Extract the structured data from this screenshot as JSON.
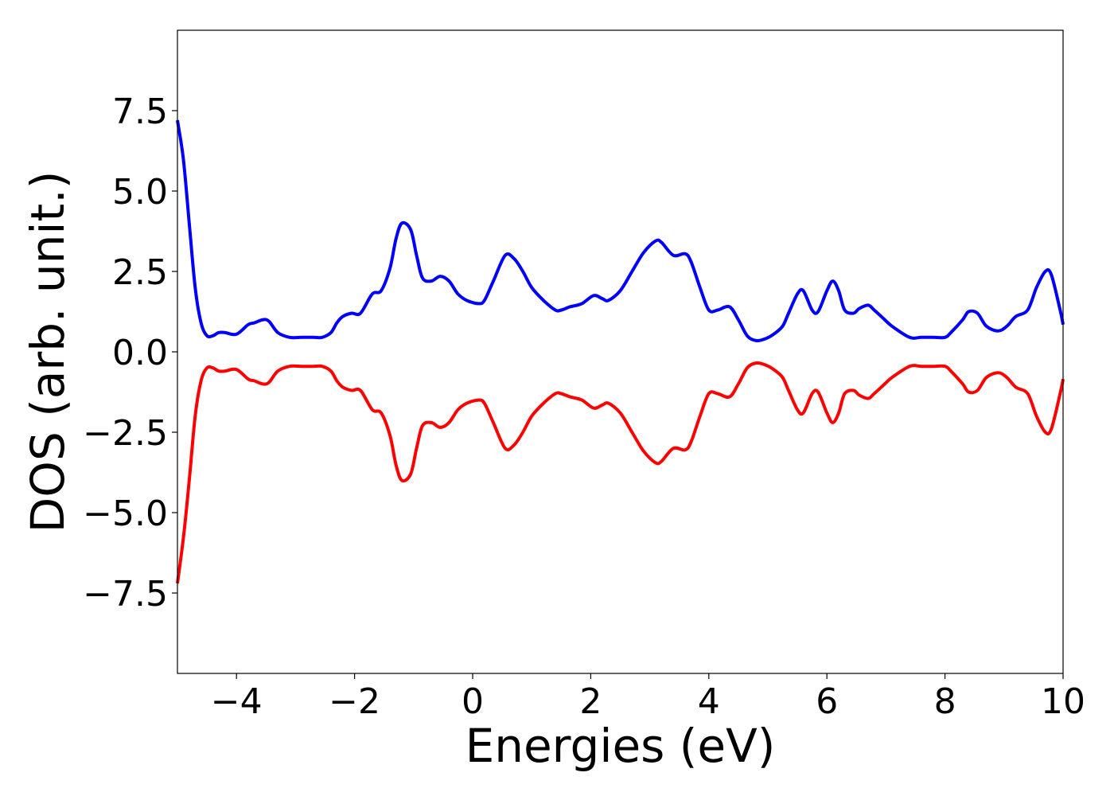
{
  "chart_data": {
    "type": "line",
    "xlabel": "Energies (eV)",
    "ylabel": "DOS (arb. unit.)",
    "xlim": [
      -5,
      10
    ],
    "ylim": [
      -10,
      10
    ],
    "grid": false,
    "x_ticks": [
      -4,
      -2,
      0,
      2,
      4,
      6,
      8,
      10
    ],
    "x_tick_labels": [
      "−4",
      "−2",
      "0",
      "2",
      "4",
      "6",
      "8",
      "10"
    ],
    "y_ticks": [
      -7.5,
      -5.0,
      -2.5,
      0.0,
      2.5,
      5.0,
      7.5
    ],
    "y_tick_labels": [
      "−7.5",
      "−5.0",
      "−2.5",
      "0.0",
      "2.5",
      "5.0",
      "7.5"
    ],
    "series": [
      {
        "color": "#0000ff",
        "x": [
          -5.0,
          -4.9,
          -4.8,
          -4.7,
          -4.6,
          -4.5,
          -4.4,
          -4.3,
          -4.2,
          -4.0,
          -3.8,
          -3.7,
          -3.55,
          -3.45,
          -3.3,
          -3.1,
          -2.9,
          -2.7,
          -2.55,
          -2.4,
          -2.3,
          -2.2,
          -2.05,
          -1.9,
          -1.7,
          -1.55,
          -1.4,
          -1.3,
          -1.2,
          -1.05,
          -0.95,
          -0.85,
          -0.7,
          -0.55,
          -0.4,
          -0.25,
          -0.1,
          0.1,
          0.2,
          0.35,
          0.55,
          0.7,
          0.85,
          1.0,
          1.2,
          1.4,
          1.5,
          1.65,
          1.85,
          2.05,
          2.2,
          2.3,
          2.5,
          2.7,
          2.9,
          3.1,
          3.2,
          3.4,
          3.6,
          3.7,
          3.85,
          4.0,
          4.15,
          4.35,
          4.5,
          4.65,
          4.8,
          4.95,
          5.1,
          5.25,
          5.35,
          5.5,
          5.6,
          5.75,
          5.85,
          6.0,
          6.1,
          6.2,
          6.3,
          6.45,
          6.55,
          6.7,
          6.8,
          6.95,
          7.1,
          7.4,
          7.6,
          7.8,
          8.0,
          8.1,
          8.3,
          8.4,
          8.55,
          8.7,
          8.9,
          9.05,
          9.2,
          9.4,
          9.55,
          9.7,
          9.8,
          9.95,
          10.0
        ],
        "y": [
          7.2,
          6.0,
          4.0,
          2.0,
          0.9,
          0.5,
          0.5,
          0.6,
          0.6,
          0.55,
          0.85,
          0.9,
          1.0,
          0.95,
          0.6,
          0.45,
          0.45,
          0.45,
          0.45,
          0.6,
          0.9,
          1.1,
          1.2,
          1.2,
          1.8,
          1.9,
          2.6,
          3.5,
          4.0,
          3.8,
          3.0,
          2.3,
          2.2,
          2.35,
          2.2,
          1.8,
          1.6,
          1.5,
          1.6,
          2.2,
          3.0,
          2.9,
          2.5,
          2.0,
          1.6,
          1.3,
          1.3,
          1.4,
          1.5,
          1.75,
          1.65,
          1.6,
          1.9,
          2.5,
          3.1,
          3.45,
          3.4,
          3.0,
          3.05,
          2.8,
          2.0,
          1.3,
          1.3,
          1.4,
          1.0,
          0.5,
          0.35,
          0.4,
          0.55,
          0.8,
          1.2,
          1.8,
          1.9,
          1.3,
          1.25,
          1.9,
          2.2,
          1.9,
          1.3,
          1.2,
          1.35,
          1.45,
          1.3,
          1.05,
          0.8,
          0.45,
          0.45,
          0.45,
          0.45,
          0.6,
          1.0,
          1.25,
          1.2,
          0.8,
          0.65,
          0.8,
          1.1,
          1.3,
          2.0,
          2.5,
          2.4,
          1.3,
          0.85
        ]
      },
      {
        "color": "#ff0000",
        "x": [
          -5.0,
          -4.9,
          -4.8,
          -4.7,
          -4.6,
          -4.5,
          -4.4,
          -4.3,
          -4.2,
          -4.0,
          -3.8,
          -3.7,
          -3.55,
          -3.45,
          -3.3,
          -3.1,
          -2.9,
          -2.7,
          -2.55,
          -2.4,
          -2.3,
          -2.2,
          -2.05,
          -1.9,
          -1.7,
          -1.55,
          -1.4,
          -1.3,
          -1.2,
          -1.05,
          -0.95,
          -0.85,
          -0.7,
          -0.55,
          -0.4,
          -0.25,
          -0.1,
          0.1,
          0.2,
          0.35,
          0.55,
          0.7,
          0.85,
          1.0,
          1.2,
          1.4,
          1.5,
          1.65,
          1.85,
          2.05,
          2.2,
          2.3,
          2.5,
          2.7,
          2.9,
          3.1,
          3.2,
          3.4,
          3.6,
          3.7,
          3.85,
          4.0,
          4.15,
          4.35,
          4.5,
          4.65,
          4.8,
          4.95,
          5.1,
          5.25,
          5.35,
          5.5,
          5.6,
          5.75,
          5.85,
          6.0,
          6.1,
          6.2,
          6.3,
          6.45,
          6.55,
          6.7,
          6.8,
          6.95,
          7.1,
          7.4,
          7.6,
          7.8,
          8.0,
          8.1,
          8.3,
          8.4,
          8.55,
          8.7,
          8.9,
          9.05,
          9.2,
          9.4,
          9.55,
          9.7,
          9.8,
          9.95,
          10.0
        ],
        "y": [
          -7.2,
          -5.8,
          -4.0,
          -2.0,
          -0.9,
          -0.5,
          -0.5,
          -0.6,
          -0.6,
          -0.55,
          -0.85,
          -0.9,
          -1.0,
          -0.95,
          -0.6,
          -0.45,
          -0.45,
          -0.45,
          -0.45,
          -0.6,
          -0.9,
          -1.1,
          -1.2,
          -1.2,
          -1.8,
          -1.9,
          -2.6,
          -3.5,
          -4.0,
          -3.8,
          -3.0,
          -2.3,
          -2.2,
          -2.35,
          -2.2,
          -1.8,
          -1.6,
          -1.5,
          -1.6,
          -2.2,
          -3.0,
          -2.9,
          -2.5,
          -2.0,
          -1.6,
          -1.3,
          -1.3,
          -1.4,
          -1.5,
          -1.75,
          -1.65,
          -1.6,
          -1.9,
          -2.5,
          -3.1,
          -3.45,
          -3.4,
          -3.0,
          -3.05,
          -2.8,
          -2.0,
          -1.3,
          -1.3,
          -1.4,
          -1.0,
          -0.5,
          -0.35,
          -0.4,
          -0.55,
          -0.8,
          -1.2,
          -1.8,
          -1.9,
          -1.3,
          -1.25,
          -1.9,
          -2.2,
          -1.9,
          -1.3,
          -1.2,
          -1.35,
          -1.45,
          -1.3,
          -1.05,
          -0.8,
          -0.45,
          -0.45,
          -0.45,
          -0.45,
          -0.6,
          -1.0,
          -1.25,
          -1.2,
          -0.8,
          -0.65,
          -0.8,
          -1.1,
          -1.3,
          -2.0,
          -2.5,
          -2.4,
          -1.3,
          -0.85
        ]
      }
    ]
  }
}
